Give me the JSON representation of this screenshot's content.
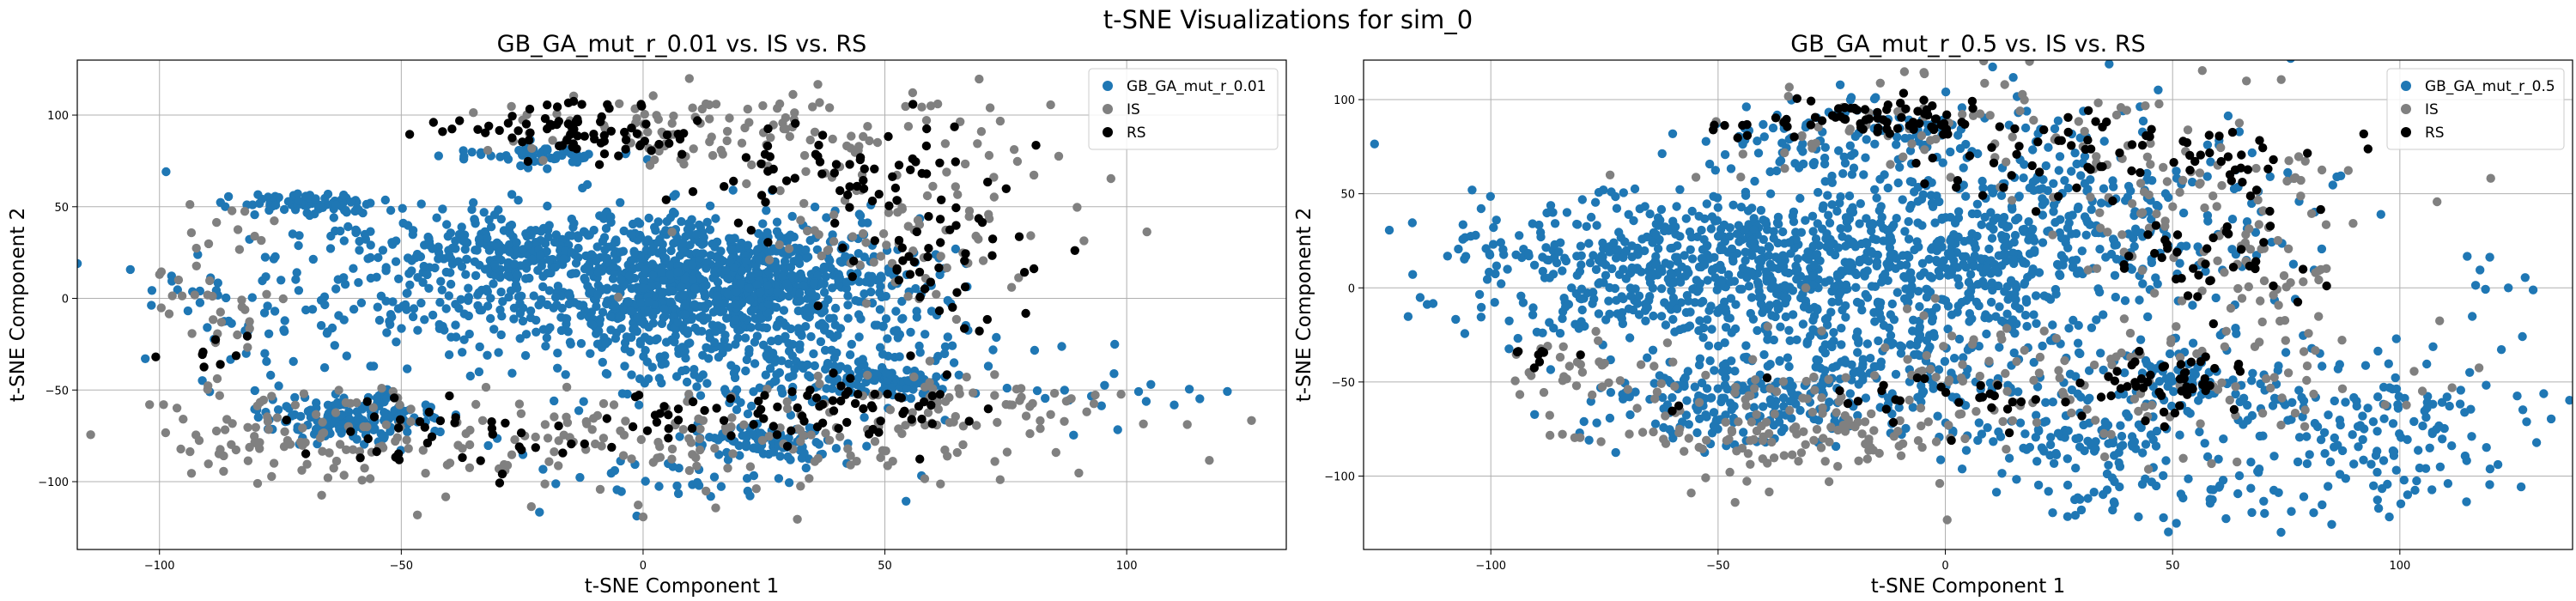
{
  "figure": {
    "title": "t-SNE Visualizations for sim_0"
  },
  "chart_data": [
    {
      "type": "scatter",
      "title": "GB_GA_mut_r_0.01 vs. IS vs. RS",
      "xlabel": "t-SNE Component 1",
      "ylabel": "t-SNE Component 2",
      "xlim": [
        -117,
        133
      ],
      "ylim": [
        -137,
        130
      ],
      "xticks": [
        -100,
        -50,
        0,
        50,
        100
      ],
      "yticks": [
        -100,
        -50,
        0,
        50,
        100
      ],
      "grid": true,
      "legend": "top-right",
      "series": [
        {
          "name": "GB_GA_mut_r_0.01",
          "color": "#1f77b4",
          "clusters": [
            {
              "cx": 15,
              "cy": 10,
              "sx": 18,
              "sy": 16,
              "n": 900
            },
            {
              "cx": -25,
              "cy": 28,
              "sx": 15,
              "sy": 9,
              "n": 240
            },
            {
              "cx": -60,
              "cy": -65,
              "sx": 9,
              "sy": 6,
              "n": 160
            },
            {
              "cx": -68,
              "cy": 52,
              "sx": 7,
              "sy": 3,
              "n": 80
            },
            {
              "cx": -52,
              "cy": 10,
              "sx": 22,
              "sy": 20,
              "n": 130
            },
            {
              "cx": 25,
              "cy": -78,
              "sx": 8,
              "sy": 5,
              "n": 90
            },
            {
              "cx": 50,
              "cy": -45,
              "sx": 6,
              "sy": 4,
              "n": 60
            },
            {
              "cx": -20,
              "cy": 78,
              "sx": 8,
              "sy": 3,
              "n": 60
            },
            {
              "cx": 25,
              "cy": -38,
              "sx": 22,
              "sy": 14,
              "n": 200
            },
            {
              "cx": 5,
              "cy": -10,
              "sx": 30,
              "sy": 14,
              "n": 220
            },
            {
              "cx": 100,
              "cy": -55,
              "sx": 12,
              "sy": 14,
              "n": 18
            },
            {
              "cx": -85,
              "cy": -20,
              "sx": 10,
              "sy": 28,
              "n": 40
            },
            {
              "cx": 5,
              "cy": -100,
              "sx": 25,
              "sy": 10,
              "n": 40
            }
          ]
        },
        {
          "name": "IS",
          "color": "#808080",
          "clusters": [
            {
              "cx": -70,
              "cy": -75,
              "sx": 18,
              "sy": 14,
              "n": 110
            },
            {
              "cx": 10,
              "cy": -80,
              "sx": 35,
              "sy": 15,
              "n": 140
            },
            {
              "cx": 55,
              "cy": 40,
              "sx": 20,
              "sy": 25,
              "n": 90
            },
            {
              "cx": 0,
              "cy": 90,
              "sx": 25,
              "sy": 10,
              "n": 70
            },
            {
              "cx": -88,
              "cy": 0,
              "sx": 6,
              "sy": 25,
              "n": 40
            },
            {
              "cx": 70,
              "cy": -60,
              "sx": 20,
              "sy": 12,
              "n": 70
            },
            {
              "cx": 40,
              "cy": 90,
              "sx": 20,
              "sy": 12,
              "n": 50
            }
          ]
        },
        {
          "name": "RS",
          "color": "#000000",
          "clusters": [
            {
              "cx": -10,
              "cy": 90,
              "sx": 10,
              "sy": 8,
              "n": 60
            },
            {
              "cx": 40,
              "cy": 70,
              "sx": 20,
              "sy": 15,
              "n": 70
            },
            {
              "cx": 60,
              "cy": 20,
              "sx": 12,
              "sy": 18,
              "n": 45
            },
            {
              "cx": 15,
              "cy": -65,
              "sx": 25,
              "sy": 10,
              "n": 50
            },
            {
              "cx": 50,
              "cy": -55,
              "sx": 10,
              "sy": 8,
              "n": 40
            },
            {
              "cx": -35,
              "cy": -75,
              "sx": 12,
              "sy": 10,
              "n": 30
            },
            {
              "cx": -90,
              "cy": -30,
              "sx": 5,
              "sy": 8,
              "n": 8
            },
            {
              "cx": -30,
              "cy": 95,
              "sx": 10,
              "sy": 4,
              "n": 15
            }
          ]
        }
      ]
    },
    {
      "type": "scatter",
      "title": "GB_GA_mut_r_0.5 vs. IS vs. RS",
      "xlabel": "t-SNE Component 1",
      "ylabel": "t-SNE Component 2",
      "xlim": [
        -128,
        138
      ],
      "ylim": [
        -139,
        121
      ],
      "xticks": [
        -100,
        -50,
        0,
        50,
        100
      ],
      "yticks": [
        -100,
        -50,
        0,
        50,
        100
      ],
      "grid": true,
      "legend": "top-right",
      "series": [
        {
          "name": "GB_GA_mut_r_0.5",
          "color": "#1f77b4",
          "clusters": [
            {
              "cx": -45,
              "cy": 10,
              "sx": 28,
              "sy": 22,
              "n": 650
            },
            {
              "cx": 0,
              "cy": 10,
              "sx": 25,
              "sy": 28,
              "n": 450
            },
            {
              "cx": 30,
              "cy": 40,
              "sx": 25,
              "sy": 30,
              "n": 250
            },
            {
              "cx": -20,
              "cy": 80,
              "sx": 18,
              "sy": 10,
              "n": 100
            },
            {
              "cx": 90,
              "cy": -75,
              "sx": 22,
              "sy": 20,
              "n": 180
            },
            {
              "cx": -50,
              "cy": -60,
              "sx": 15,
              "sy": 12,
              "n": 150
            },
            {
              "cx": 30,
              "cy": -80,
              "sx": 12,
              "sy": 8,
              "n": 80
            },
            {
              "cx": 50,
              "cy": -50,
              "sx": 8,
              "sy": 8,
              "n": 60
            },
            {
              "cx": -10,
              "cy": -50,
              "sx": 25,
              "sy": 15,
              "n": 180
            },
            {
              "cx": 50,
              "cy": -110,
              "sx": 30,
              "sy": 10,
              "n": 70
            },
            {
              "cx": -95,
              "cy": 10,
              "sx": 12,
              "sy": 18,
              "n": 40
            },
            {
              "cx": 120,
              "cy": 0,
              "sx": 6,
              "sy": 15,
              "n": 10
            }
          ]
        },
        {
          "name": "IS",
          "color": "#808080",
          "clusters": [
            {
              "cx": -40,
              "cy": -75,
              "sx": 22,
              "sy": 15,
              "n": 140
            },
            {
              "cx": 30,
              "cy": -50,
              "sx": 35,
              "sy": 22,
              "n": 140
            },
            {
              "cx": 55,
              "cy": 50,
              "sx": 20,
              "sy": 25,
              "n": 90
            },
            {
              "cx": 0,
              "cy": 85,
              "sx": 25,
              "sy": 15,
              "n": 60
            },
            {
              "cx": -80,
              "cy": -45,
              "sx": 10,
              "sy": 10,
              "n": 30
            },
            {
              "cx": 70,
              "cy": 10,
              "sx": 15,
              "sy": 20,
              "n": 40
            }
          ]
        },
        {
          "name": "RS",
          "color": "#000000",
          "clusters": [
            {
              "cx": -10,
              "cy": 90,
              "sx": 12,
              "sy": 5,
              "n": 60
            },
            {
              "cx": 40,
              "cy": 70,
              "sx": 25,
              "sy": 12,
              "n": 80
            },
            {
              "cx": 60,
              "cy": 20,
              "sx": 10,
              "sy": 15,
              "n": 40
            },
            {
              "cx": 10,
              "cy": -60,
              "sx": 25,
              "sy": 8,
              "n": 40
            },
            {
              "cx": 50,
              "cy": -50,
              "sx": 8,
              "sy": 8,
              "n": 40
            },
            {
              "cx": -85,
              "cy": -40,
              "sx": 5,
              "sy": 5,
              "n": 8
            },
            {
              "cx": -40,
              "cy": 85,
              "sx": 8,
              "sy": 5,
              "n": 12
            }
          ]
        }
      ]
    }
  ]
}
